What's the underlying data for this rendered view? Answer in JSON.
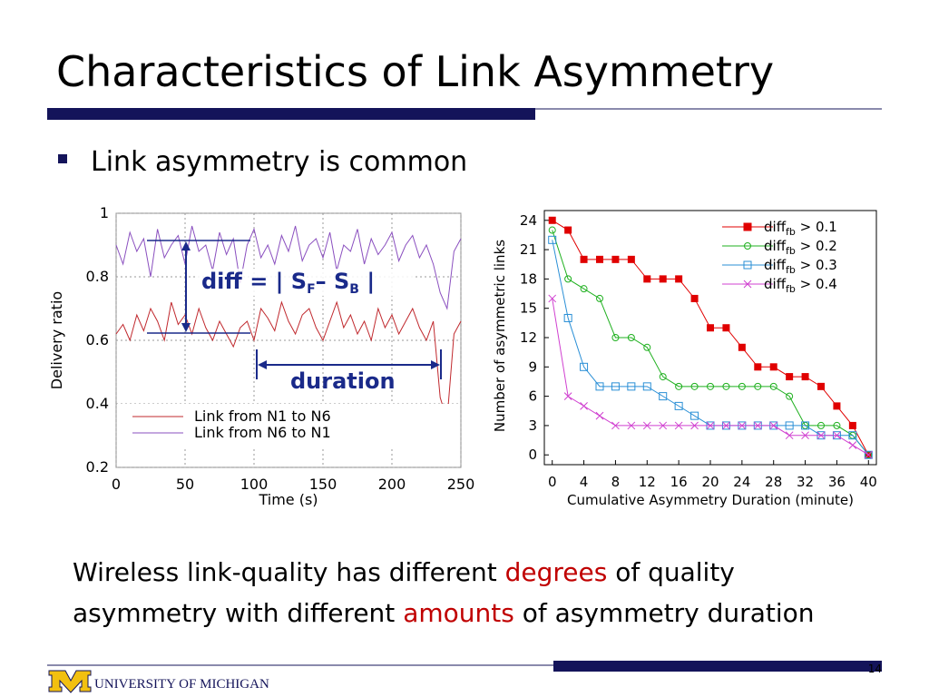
{
  "title": "Characteristics of Link Asymmetry",
  "bullet": "Link asymmetry is common",
  "body": {
    "highlight_color": "#c00000",
    "lines": [
      [
        "Wireless link-quality has different ",
        "degrees",
        " of quality"
      ],
      [
        "asymmetry with different ",
        "amounts",
        " of asymmetry duration"
      ]
    ]
  },
  "footer": {
    "university": "UNIVERSITY OF MICHIGAN",
    "page": "14"
  },
  "chart_data": [
    {
      "type": "line",
      "xlabel": "Time (s)",
      "ylabel": "Delivery ratio",
      "x": [
        0,
        5,
        10,
        15,
        20,
        25,
        30,
        35,
        40,
        45,
        50,
        55,
        60,
        65,
        70,
        75,
        80,
        85,
        90,
        95,
        100,
        105,
        110,
        115,
        120,
        125,
        130,
        135,
        140,
        145,
        150,
        155,
        160,
        165,
        170,
        175,
        180,
        185,
        190,
        195,
        200,
        205,
        210,
        215,
        220,
        225,
        230,
        235,
        240,
        245,
        250
      ],
      "series": [
        {
          "name": "Link from N1 to N6",
          "color": "#c0282d",
          "values": [
            0.62,
            0.65,
            0.6,
            0.68,
            0.63,
            0.7,
            0.66,
            0.6,
            0.72,
            0.65,
            0.68,
            0.62,
            0.7,
            0.64,
            0.6,
            0.66,
            0.62,
            0.58,
            0.64,
            0.66,
            0.6,
            0.7,
            0.67,
            0.63,
            0.72,
            0.66,
            0.62,
            0.68,
            0.7,
            0.64,
            0.6,
            0.66,
            0.72,
            0.64,
            0.68,
            0.62,
            0.66,
            0.6,
            0.7,
            0.64,
            0.68,
            0.62,
            0.66,
            0.7,
            0.64,
            0.6,
            0.66,
            0.42,
            0.35,
            0.62,
            0.66
          ]
        },
        {
          "name": "Link from N6 to N1",
          "color": "#8a4fbf",
          "values": [
            0.9,
            0.84,
            0.94,
            0.88,
            0.92,
            0.8,
            0.95,
            0.86,
            0.9,
            0.93,
            0.84,
            0.96,
            0.88,
            0.9,
            0.82,
            0.94,
            0.87,
            0.92,
            0.78,
            0.9,
            0.95,
            0.86,
            0.9,
            0.84,
            0.93,
            0.88,
            0.96,
            0.85,
            0.9,
            0.92,
            0.86,
            0.94,
            0.82,
            0.9,
            0.88,
            0.95,
            0.84,
            0.92,
            0.87,
            0.9,
            0.94,
            0.85,
            0.9,
            0.93,
            0.86,
            0.9,
            0.84,
            0.75,
            0.7,
            0.88,
            0.92
          ]
        }
      ],
      "xlim": [
        0,
        250
      ],
      "ylim": [
        0.2,
        1
      ],
      "xticks": [
        0,
        50,
        100,
        150,
        200,
        250
      ],
      "yticks": [
        0.2,
        0.4,
        0.6,
        0.8,
        1
      ],
      "grid": true,
      "legend": "lower left",
      "annotations": [
        {
          "parts": [
            "diff = | S",
            "F",
            "– S",
            "B",
            " |"
          ]
        },
        {
          "parts": [
            "duration"
          ]
        }
      ]
    },
    {
      "type": "line",
      "xlabel": "Cumulative Asymmetry Duration (minute)",
      "ylabel": "Number of asymmetric links",
      "x": [
        0,
        2,
        4,
        6,
        8,
        10,
        12,
        14,
        16,
        18,
        20,
        22,
        24,
        26,
        28,
        30,
        32,
        34,
        36,
        38,
        40
      ],
      "series": [
        {
          "name": {
            "main": "diff",
            "sub": "fb",
            "rest": " > 0.1"
          },
          "color": "#e00000",
          "marker": "filled-square",
          "values": [
            24,
            23,
            20,
            20,
            20,
            20,
            18,
            18,
            18,
            16,
            13,
            13,
            11,
            9,
            9,
            8,
            8,
            7,
            5,
            3,
            0
          ]
        },
        {
          "name": {
            "main": "diff",
            "sub": "fb",
            "rest": " > 0.2"
          },
          "color": "#1fb01f",
          "marker": "circle",
          "values": [
            23,
            18,
            17,
            16,
            12,
            12,
            11,
            8,
            7,
            7,
            7,
            7,
            7,
            7,
            7,
            6,
            3,
            3,
            3,
            2,
            0
          ]
        },
        {
          "name": {
            "main": "diff",
            "sub": "fb",
            "rest": " > 0.3"
          },
          "color": "#2a8fd6",
          "marker": "square",
          "values": [
            22,
            14,
            9,
            7,
            7,
            7,
            7,
            6,
            5,
            4,
            3,
            3,
            3,
            3,
            3,
            3,
            3,
            2,
            2,
            2,
            0
          ]
        },
        {
          "name": {
            "main": "diff",
            "sub": "fb",
            "rest": " > 0.4"
          },
          "color": "#d040d0",
          "marker": "cross",
          "values": [
            16,
            6,
            5,
            4,
            3,
            3,
            3,
            3,
            3,
            3,
            3,
            3,
            3,
            3,
            3,
            2,
            2,
            2,
            2,
            1,
            0
          ]
        }
      ],
      "xlim": [
        -1,
        41
      ],
      "ylim": [
        -1,
        25
      ],
      "xticks": [
        0,
        4,
        8,
        12,
        16,
        20,
        24,
        28,
        32,
        36,
        40
      ],
      "yticks": [
        0,
        3,
        6,
        9,
        12,
        15,
        18,
        21,
        24
      ],
      "grid": false,
      "legend": "upper right"
    }
  ]
}
